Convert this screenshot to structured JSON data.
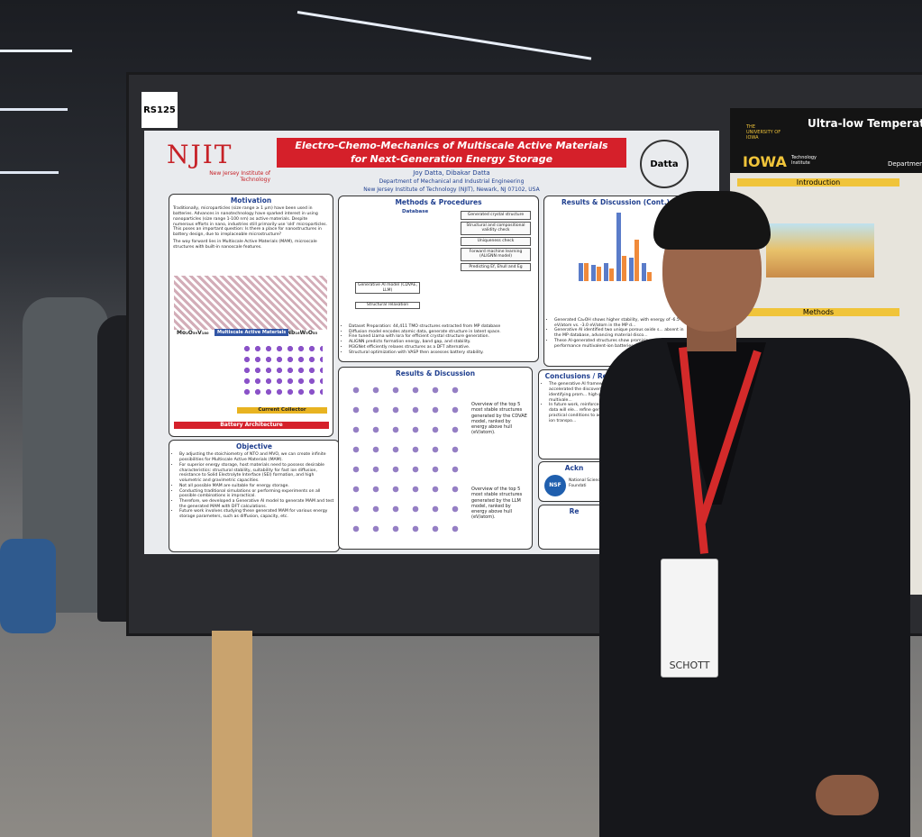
{
  "board_label": "RS125",
  "poster": {
    "logo": "NJIT",
    "logo_sub": "New Jersey Institute of Technology",
    "title_line1": "Electro-Chemo-Mechanics of Multiscale Active Materials",
    "title_line2": "for Next-Generation Energy Storage",
    "authors": "Joy Datta, Dibakar Datta",
    "department": "Department of Mechanical and Industrial Engineering",
    "affiliation": "New Jersey Institute of Technology (NJIT), Newark, NJ 07102, USA",
    "lab_logo": "Datta",
    "motivation": {
      "heading": "Motivation",
      "text": "Traditionally, microparticles (size range ≥ 1 μm) have been used in batteries. Advances in nanotechnology have sparked interest in using nanoparticles (size range 1-100 nm) as active materials. Despite numerous efforts in nano, industries still primarily use 'old' microparticles. This poses an important question: Is there a place for nanostructures in battery design, due to irreplaceable microstructure?",
      "text2": "The way forward lies in Multiscale Active Materials (MAM), microscale structures with built-in nanoscale features.",
      "mam_label": "Multiscale Active Materials",
      "formula_left": "Mo₂O₅₉V₁₈₀",
      "formula_right": "Nb₁₆W₅O₅₅",
      "current_collector": "Current Collector",
      "battery_architecture": "Battery Architecture"
    },
    "methods": {
      "heading": "Methods & Procedures",
      "database": "Database",
      "steps": [
        "Generated crystal structure",
        "Structural and compositional validity check",
        "Uniqueness check",
        "Forward machine learning (ALIGNN model)",
        "Predicting Ef, Ehull and Eg"
      ],
      "gen_model": "Generative AI model (CDVAE, LLM)",
      "relax": "Structural relaxation",
      "bullets": [
        "Dataset Preparation: 44,411 TMO structures extracted from MP database",
        "Diffusion model encodes atomic data, generate structure in latent space.",
        "Fine tuned Llama with lora for efficient crystal structure generation.",
        "ALIGNN predicts formation energy, band gap, and stability.",
        "M3GNet efficiently relaxes structures as a DFT alternative.",
        "Structural optimization with VASP then assesses battery stability."
      ]
    },
    "results_cont": {
      "heading": "Results & Discussion (Cont.)",
      "bullets": [
        "Generated Ca₂OH shows higher stability, with energy of -6.5 eV/atom vs. -3.0 eV/atom in the MP d...",
        "Generative AI identified two unique porous oxide s... absent in the MP database, advancing material disco...",
        "These AI-generated structures show promising sta... high-performance multivalent-ion batteries."
      ]
    },
    "results": {
      "heading": "Results & Discussion",
      "caption1": "Overview of the top 5 most stable structures generated by the CDVAE model, ranked by energy above hull (eV/atom).",
      "caption2": "Overview of the top 5 most stable structures generated by the LLM model, ranked by energy above hull (eV/atom)."
    },
    "objective": {
      "heading": "Objective",
      "bullets": [
        "By adjusting the stoichiometry of NTO and MVO, we can create infinite possibilities for Multiscale Active Materials (MAM).",
        "For superior energy storage, host materials need to possess desirable characteristics: structural stability, suitability for fast ion diffusion, resistance to Solid Electrolyte Interface (SEI) formation, and high volumetric and gravimetric capacities.",
        "Not all possible MAM are suitable for energy storage.",
        "Conducting traditional simulations or performing experiments on all possible combinations is impractical.",
        "Therefore, we developed a Generative AI model to generate MAM and test the generated MAM with DFT calculations.",
        "Future work involves studying these generated MAM for various energy storage parameters, such as diffusion, capacity, etc."
      ]
    },
    "conclusions": {
      "heading": "Conclusions / Recommen",
      "bullets": [
        "The generative AI framework in th... accelerated the discovery of ... materials, identifying prom... high-performance multivale...",
        "In future work, reinforcem... world battery data will ele... refine generative outputs... practical conditions to acc... durability and ion transpo..."
      ]
    },
    "ack": {
      "heading": "Ackn",
      "nsf": "NSF",
      "nsf_text": "National Science Foundati"
    },
    "refs": {
      "heading": "Re"
    }
  },
  "neighbor_poster": {
    "university": "THE UNIVERSITY OF IOWA",
    "brand": "IOWA",
    "brand_sub": "Technology Institute",
    "title": "Ultra-low Temperatu",
    "department": "Department",
    "intro": "Introduction",
    "methods": "Methods"
  },
  "badge": "SCHOTT"
}
